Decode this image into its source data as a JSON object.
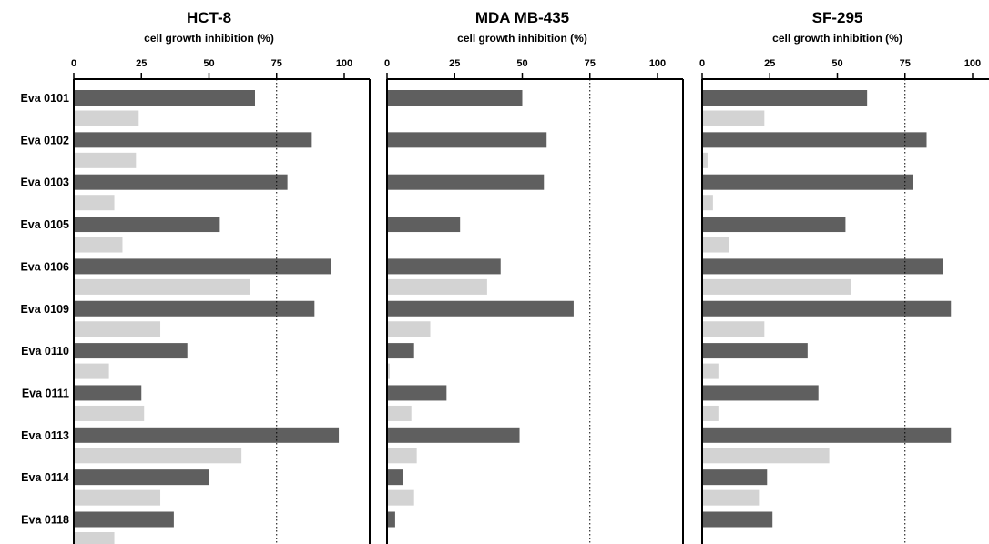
{
  "chart_data": [
    {
      "type": "bar",
      "orientation": "horizontal",
      "title": "HCT-8",
      "xlabel": "cell growth inhibition (%)",
      "xlim": [
        0,
        100
      ],
      "xticks": [
        "0",
        "25",
        "50",
        "75",
        "100"
      ],
      "reference_line": 75,
      "categories": [
        "Eva 0101",
        "Eva 0102",
        "Eva 0103",
        "Eva 0105",
        "Eva 0106",
        "Eva 0109",
        "Eva 0110",
        "Eva 0111",
        "Eva 0113",
        "Eva 0114",
        "Eva 0118"
      ],
      "series": [
        {
          "color": "#5f5f5f",
          "values": [
            67,
            88,
            79,
            54,
            95,
            89,
            42,
            25,
            98,
            50,
            37
          ]
        },
        {
          "color": "#d3d3d3",
          "values": [
            24,
            23,
            15,
            18,
            65,
            32,
            13,
            26,
            62,
            32,
            15
          ]
        }
      ]
    },
    {
      "type": "bar",
      "orientation": "horizontal",
      "title": "MDA MB-435",
      "xlabel": "cell growth inhibition (%)",
      "xlim": [
        0,
        100
      ],
      "xticks": [
        "0",
        "25",
        "50",
        "75",
        "100"
      ],
      "reference_line": 75,
      "categories": [
        "Eva 0101",
        "Eva 0102",
        "Eva 0103",
        "Eva 0105",
        "Eva 0106",
        "Eva 0109",
        "Eva 0110",
        "Eva 0111",
        "Eva 0113",
        "Eva 0114",
        "Eva 0118"
      ],
      "series": [
        {
          "color": "#5f5f5f",
          "values": [
            50,
            59,
            58,
            27,
            42,
            69,
            10,
            22,
            49,
            6,
            3
          ]
        },
        {
          "color": "#d3d3d3",
          "values": [
            0,
            0,
            0,
            0,
            37,
            16,
            1,
            9,
            11,
            10,
            0
          ]
        }
      ]
    },
    {
      "type": "bar",
      "orientation": "horizontal",
      "title": "SF-295",
      "xlabel": "cell growth inhibition (%)",
      "xlim": [
        0,
        100
      ],
      "xticks": [
        "0",
        "25",
        "50",
        "75",
        "100"
      ],
      "reference_line": 75,
      "categories": [
        "Eva 0101",
        "Eva 0102",
        "Eva 0103",
        "Eva 0105",
        "Eva 0106",
        "Eva 0109",
        "Eva 0110",
        "Eva 0111",
        "Eva 0113",
        "Eva 0114",
        "Eva 0118"
      ],
      "series": [
        {
          "color": "#5f5f5f",
          "values": [
            61,
            83,
            78,
            53,
            89,
            92,
            39,
            43,
            92,
            24,
            26
          ]
        },
        {
          "color": "#d3d3d3",
          "values": [
            23,
            2,
            4,
            10,
            55,
            23,
            6,
            6,
            47,
            21,
            0
          ]
        }
      ]
    }
  ]
}
